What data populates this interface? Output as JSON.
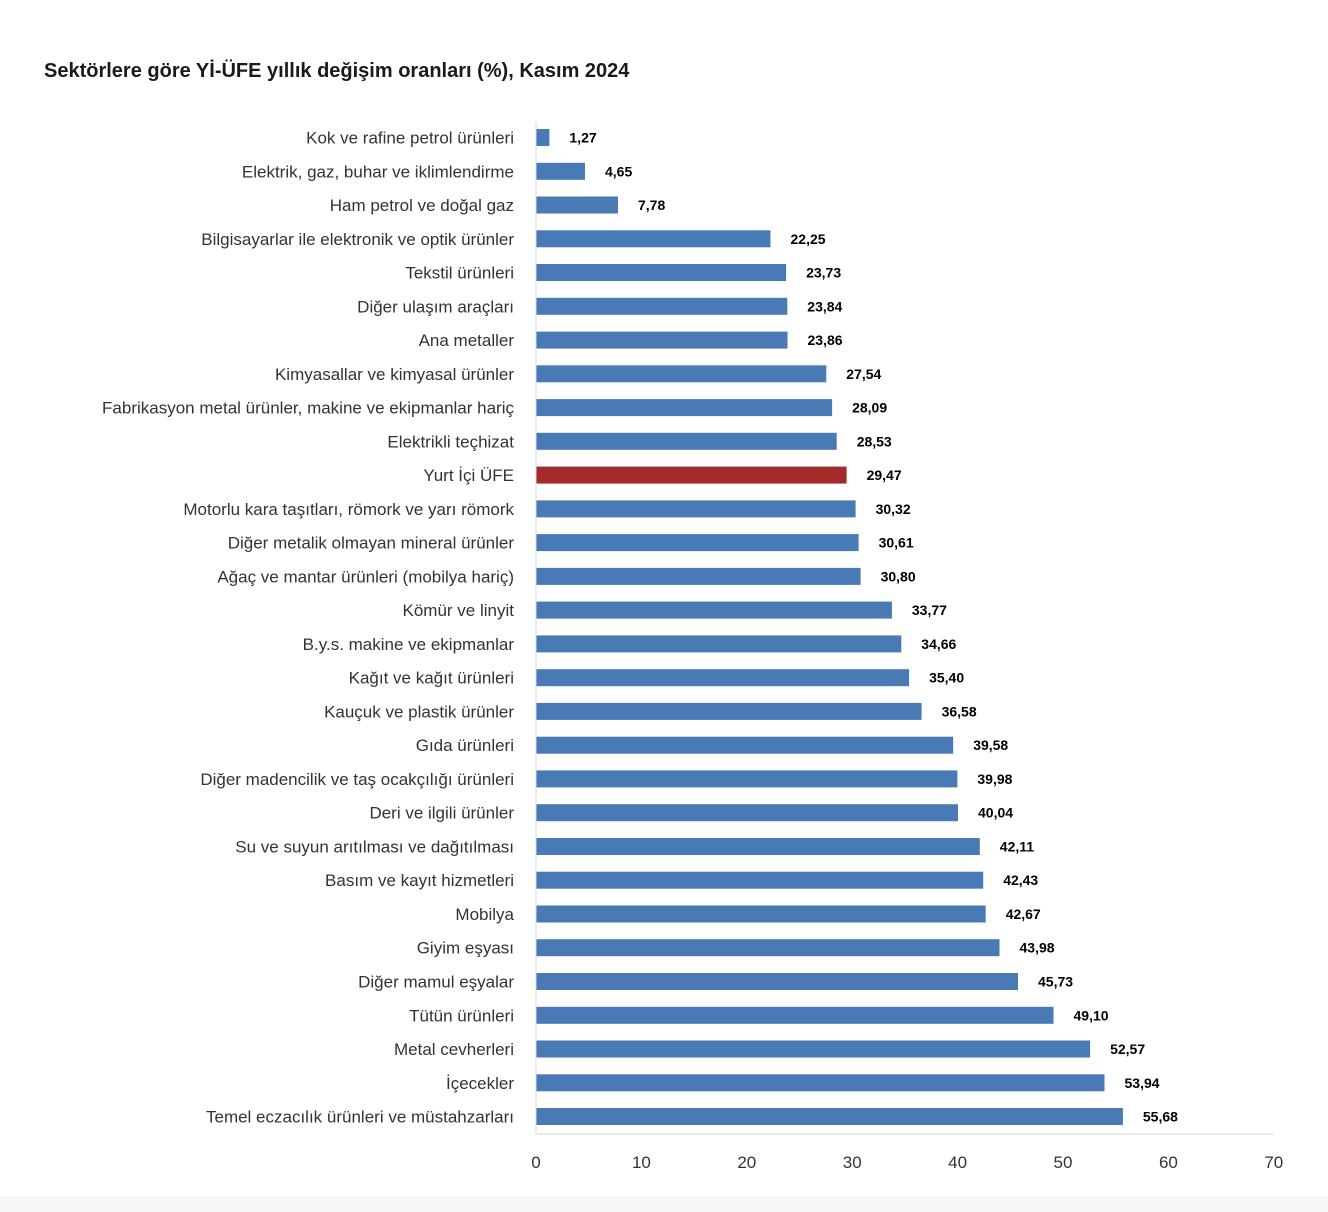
{
  "chart_data": {
    "type": "bar",
    "orientation": "horizontal",
    "title": "Sektörlere göre Yİ-ÜFE yıllık değişim oranları (%), Kasım 2024",
    "categories": [
      "Kok ve rafine petrol ürünleri",
      "Elektrik, gaz, buhar ve iklimlendirme",
      "Ham petrol ve doğal gaz",
      "Bilgisayarlar ile elektronik ve optik ürünler",
      "Tekstil ürünleri",
      "Diğer ulaşım araçları",
      "Ana metaller",
      "Kimyasallar ve kimyasal ürünler",
      "Fabrikasyon metal ürünler, makine ve ekipmanlar hariç",
      "Elektrikli teçhizat",
      "Yurt İçi ÜFE",
      "Motorlu kara taşıtları, römork ve yarı römork",
      "Diğer metalik olmayan mineral ürünler",
      "Ağaç ve mantar ürünleri (mobilya hariç)",
      "Kömür ve linyit",
      "B.y.s. makine ve ekipmanlar",
      "Kağıt ve kağıt ürünleri",
      "Kauçuk ve plastik ürünler",
      "Gıda ürünleri",
      "Diğer madencilik ve taş ocakçılığı ürünleri",
      "Deri ve ilgili ürünler",
      "Su ve suyun arıtılması ve dağıtılması",
      "Basım ve kayıt hizmetleri",
      "Mobilya",
      "Giyim eşyası",
      "Diğer mamul eşyalar",
      "Tütün ürünleri",
      "Metal cevherleri",
      "İçecekler",
      "Temel eczacılık ürünleri ve müstahzarları"
    ],
    "values": [
      1.27,
      4.65,
      7.78,
      22.25,
      23.73,
      23.84,
      23.86,
      27.54,
      28.09,
      28.53,
      29.47,
      30.32,
      30.61,
      30.8,
      33.77,
      34.66,
      35.4,
      36.58,
      39.58,
      39.98,
      40.04,
      42.11,
      42.43,
      42.67,
      43.98,
      45.73,
      49.1,
      52.57,
      53.94,
      55.68
    ],
    "value_labels": [
      "1,27",
      "4,65",
      "7,78",
      "22,25",
      "23,73",
      "23,84",
      "23,86",
      "27,54",
      "28,09",
      "28,53",
      "29,47",
      "30,32",
      "30,61",
      "30,80",
      "33,77",
      "34,66",
      "35,40",
      "36,58",
      "39,58",
      "39,98",
      "40,04",
      "42,11",
      "42,43",
      "42,67",
      "43,98",
      "45,73",
      "49,10",
      "52,57",
      "53,94",
      "55,68"
    ],
    "highlight_category": "Yurt İçi ÜFE",
    "xlim": [
      0,
      70
    ],
    "xticks": [
      0,
      10,
      20,
      30,
      40,
      50,
      60,
      70
    ],
    "grid": false,
    "legend": "none",
    "colors": {
      "bar": "#4a7ab5",
      "highlight": "#a52a2a",
      "axis": "#d9d9d9"
    }
  }
}
